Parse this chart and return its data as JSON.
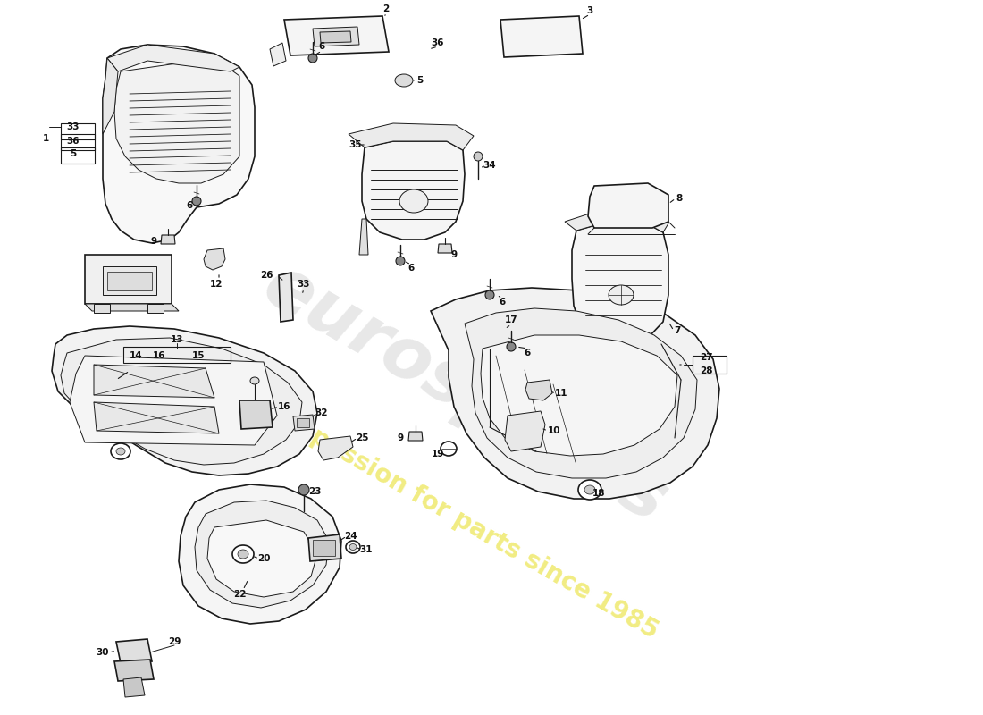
{
  "background_color": "#ffffff",
  "line_color": "#1a1a1a",
  "watermark1": "eurospares",
  "watermark2": "a passion for parts since 1985",
  "fig_width": 11.0,
  "fig_height": 8.0,
  "dpi": 100
}
